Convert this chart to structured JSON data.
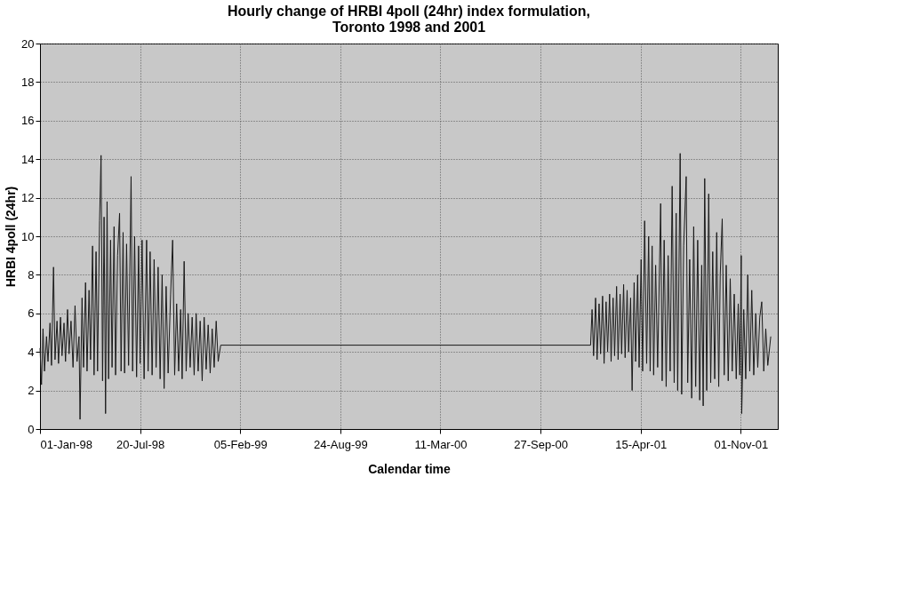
{
  "chart_data": {
    "type": "line",
    "title": [
      "Hourly change of HRBI 4poll (24hr) index formulation,",
      "Toronto 1998 and 2001"
    ],
    "xlabel": "Calendar time",
    "ylabel": "HRBI 4poll (24hr)",
    "grid": true,
    "legend": false,
    "line_style": "solid",
    "marker": "none",
    "xlim": [
      "1998-01-01",
      "2002-01-14"
    ],
    "xticks": [
      {
        "value": "1998-01-01",
        "label": "01-Jan-98"
      },
      {
        "value": "1998-07-20",
        "label": "20-Jul-98"
      },
      {
        "value": "1999-02-05",
        "label": "05-Feb-99"
      },
      {
        "value": "1999-08-24",
        "label": "24-Aug-99"
      },
      {
        "value": "2000-03-11",
        "label": "11-Mar-00"
      },
      {
        "value": "2000-09-27",
        "label": "27-Sep-00"
      },
      {
        "value": "2001-04-15",
        "label": "15-Apr-01"
      },
      {
        "value": "2001-11-01",
        "label": "01-Nov-01"
      }
    ],
    "ylim": [
      0,
      20
    ],
    "yticks": [
      0,
      2,
      4,
      6,
      8,
      10,
      12,
      14,
      16,
      18,
      20
    ],
    "x": [
      "1998-01-01",
      "1998-01-04",
      "1998-01-07",
      "1998-01-10",
      "1998-01-14",
      "1998-01-17",
      "1998-01-21",
      "1998-01-24",
      "1998-01-28",
      "1998-01-31",
      "1998-02-04",
      "1998-02-07",
      "1998-02-11",
      "1998-02-14",
      "1998-02-18",
      "1998-02-21",
      "1998-02-25",
      "1998-02-28",
      "1998-03-04",
      "1998-03-08",
      "1998-03-12",
      "1998-03-16",
      "1998-03-20",
      "1998-03-22",
      "1998-03-26",
      "1998-03-29",
      "1998-04-02",
      "1998-04-05",
      "1998-04-09",
      "1998-04-12",
      "1998-04-16",
      "1998-04-19",
      "1998-04-23",
      "1998-04-26",
      "1998-04-30",
      "1998-05-03",
      "1998-05-06",
      "1998-05-09",
      "1998-05-12",
      "1998-05-15",
      "1998-05-18",
      "1998-05-22",
      "1998-05-25",
      "1998-05-29",
      "1998-06-01",
      "1998-06-05",
      "1998-06-09",
      "1998-06-12",
      "1998-06-16",
      "1998-06-19",
      "1998-06-23",
      "1998-06-27",
      "1998-07-02",
      "1998-07-05",
      "1998-07-09",
      "1998-07-13",
      "1998-07-17",
      "1998-07-20",
      "1998-07-24",
      "1998-07-28",
      "1998-08-02",
      "1998-08-05",
      "1998-08-09",
      "1998-08-13",
      "1998-08-17",
      "1998-08-21",
      "1998-08-25",
      "1998-08-29",
      "1998-09-02",
      "1998-09-06",
      "1998-09-10",
      "1998-09-14",
      "1998-09-19",
      "1998-09-23",
      "1998-09-27",
      "1998-10-01",
      "1998-10-05",
      "1998-10-09",
      "1998-10-12",
      "1998-10-16",
      "1998-10-20",
      "1998-10-24",
      "1998-10-28",
      "1998-11-01",
      "1998-11-05",
      "1998-11-09",
      "1998-11-13",
      "1998-11-17",
      "1998-11-21",
      "1998-11-25",
      "1998-11-29",
      "1998-12-03",
      "1998-12-07",
      "1998-12-11",
      "1998-12-15",
      "1998-12-19",
      "1998-12-23",
      "1998-12-28",
      "2001-01-05",
      "2001-01-08",
      "2001-01-11",
      "2001-01-15",
      "2001-01-18",
      "2001-01-22",
      "2001-01-25",
      "2001-01-29",
      "2001-02-01",
      "2001-02-05",
      "2001-02-08",
      "2001-02-12",
      "2001-02-15",
      "2001-02-19",
      "2001-02-22",
      "2001-02-26",
      "2001-03-01",
      "2001-03-05",
      "2001-03-08",
      "2001-03-12",
      "2001-03-15",
      "2001-03-19",
      "2001-03-22",
      "2001-03-26",
      "2001-03-29",
      "2001-04-02",
      "2001-04-05",
      "2001-04-09",
      "2001-04-12",
      "2001-04-16",
      "2001-04-19",
      "2001-04-23",
      "2001-04-27",
      "2001-05-01",
      "2001-05-04",
      "2001-05-08",
      "2001-05-11",
      "2001-05-15",
      "2001-05-19",
      "2001-05-25",
      "2001-05-28",
      "2001-06-01",
      "2001-06-05",
      "2001-06-09",
      "2001-06-13",
      "2001-06-17",
      "2001-06-21",
      "2001-06-25",
      "2001-06-28",
      "2001-07-03",
      "2001-07-06",
      "2001-07-10",
      "2001-07-15",
      "2001-07-18",
      "2001-07-22",
      "2001-07-26",
      "2001-07-30",
      "2001-08-03",
      "2001-08-07",
      "2001-08-11",
      "2001-08-15",
      "2001-08-18",
      "2001-08-21",
      "2001-08-25",
      "2001-08-29",
      "2001-09-02",
      "2001-09-06",
      "2001-09-10",
      "2001-09-14",
      "2001-09-18",
      "2001-09-21",
      "2001-09-25",
      "2001-09-29",
      "2001-10-03",
      "2001-10-07",
      "2001-10-11",
      "2001-10-15",
      "2001-10-19",
      "2001-10-23",
      "2001-10-27",
      "2001-10-30",
      "2001-11-02",
      "2001-11-03",
      "2001-11-07",
      "2001-11-11",
      "2001-11-15",
      "2001-11-19",
      "2001-11-23",
      "2001-11-27",
      "2001-12-01",
      "2001-12-05",
      "2001-12-09",
      "2001-12-13",
      "2001-12-17",
      "2001-12-21",
      "2001-12-25",
      "2001-12-31"
    ],
    "series": [
      {
        "color": "#1a1a1a",
        "values": [
          4.2,
          2.3,
          5.2,
          3.0,
          4.8,
          3.5,
          5.5,
          3.3,
          8.4,
          3.6,
          5.6,
          3.4,
          5.8,
          3.8,
          5.5,
          3.5,
          6.2,
          3.9,
          5.6,
          3.2,
          6.4,
          3.5,
          4.8,
          0.5,
          6.8,
          3.2,
          7.6,
          3.0,
          7.2,
          3.6,
          9.5,
          2.8,
          9.2,
          3.0,
          10.8,
          14.2,
          2.5,
          11.0,
          0.8,
          11.8,
          2.6,
          9.8,
          3.2,
          10.5,
          2.8,
          9.0,
          11.2,
          3.0,
          10.2,
          2.9,
          9.6,
          3.3,
          13.1,
          3.0,
          10.0,
          2.7,
          9.5,
          3.4,
          9.8,
          2.6,
          9.8,
          3.0,
          9.2,
          2.8,
          8.8,
          3.2,
          8.4,
          2.6,
          8.0,
          2.1,
          7.4,
          2.9,
          7.0,
          9.8,
          2.8,
          6.5,
          3.0,
          6.2,
          2.6,
          8.7,
          3.0,
          6.0,
          3.2,
          5.8,
          2.8,
          6.0,
          3.0,
          5.6,
          2.5,
          5.8,
          3.1,
          5.4,
          2.9,
          5.2,
          3.2,
          5.6,
          3.5,
          4.35,
          4.35,
          6.2,
          3.8,
          6.8,
          3.6,
          6.5,
          3.9,
          6.9,
          3.4,
          6.6,
          4.0,
          7.0,
          3.5,
          6.8,
          3.8,
          7.4,
          3.6,
          7.0,
          3.9,
          7.5,
          3.7,
          7.2,
          4.0,
          6.8,
          2.0,
          7.6,
          3.5,
          8.0,
          3.2,
          8.8,
          3.0,
          10.8,
          3.4,
          10.0,
          3.0,
          9.5,
          2.8,
          8.5,
          3.2,
          11.7,
          2.5,
          9.8,
          2.2,
          9.0,
          3.0,
          12.6,
          2.4,
          11.2,
          2.0,
          14.3,
          1.8,
          9.5,
          13.1,
          2.4,
          8.8,
          1.6,
          10.5,
          2.2,
          9.8,
          1.5,
          8.5,
          1.2,
          13.0,
          2.0,
          12.2,
          2.4,
          9.2,
          2.6,
          10.2,
          2.2,
          8.0,
          10.9,
          2.8,
          8.5,
          2.5,
          7.8,
          3.0,
          7.0,
          2.6,
          6.5,
          2.8,
          9.0,
          0.8,
          6.2,
          2.6,
          8.0,
          3.0,
          7.2,
          2.8,
          6.0,
          3.2,
          5.8,
          6.6,
          3.0,
          5.2,
          3.3,
          4.8
        ]
      }
    ]
  }
}
